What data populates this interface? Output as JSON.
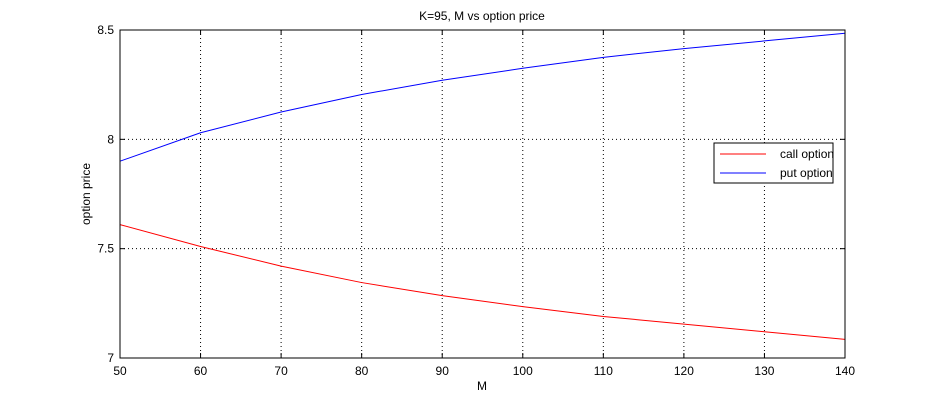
{
  "chart_data": {
    "type": "line",
    "title": "K=95, M vs option price",
    "xlabel": "M",
    "ylabel": "option price",
    "xlim": [
      50,
      140
    ],
    "ylim": [
      7,
      8.5
    ],
    "xticks": [
      "50",
      "60",
      "70",
      "80",
      "90",
      "100",
      "110",
      "120",
      "130",
      "140"
    ],
    "yticks": [
      "7",
      "7.5",
      "8",
      "8.5"
    ],
    "grid": true,
    "legend_position": "right",
    "x": [
      50,
      60,
      70,
      80,
      90,
      100,
      110,
      120,
      130,
      140
    ],
    "series": [
      {
        "name": "call option",
        "color": "#ff0000",
        "values": [
          7.61,
          7.51,
          7.42,
          7.345,
          7.285,
          7.235,
          7.19,
          7.155,
          7.12,
          7.085
        ]
      },
      {
        "name": "put option",
        "color": "#0000ff",
        "values": [
          7.9,
          8.03,
          8.125,
          8.205,
          8.27,
          8.325,
          8.375,
          8.415,
          8.45,
          8.485
        ]
      }
    ]
  }
}
